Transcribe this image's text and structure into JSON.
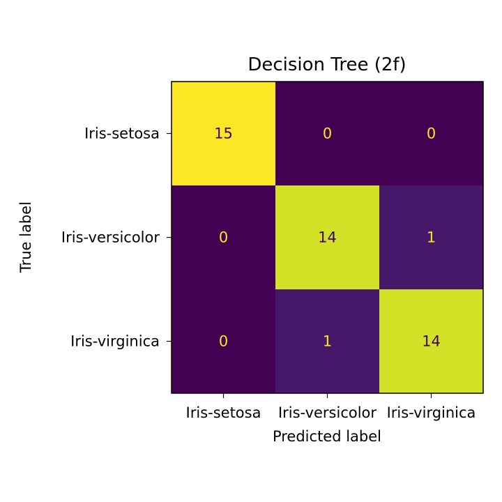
{
  "chart_data": {
    "type": "heatmap",
    "title": "Decision Tree (2f)",
    "xlabel": "Predicted label",
    "ylabel": "True label",
    "x_categories": [
      "Iris-setosa",
      "Iris-versicolor",
      "Iris-virginica"
    ],
    "y_categories": [
      "Iris-setosa",
      "Iris-versicolor",
      "Iris-virginica"
    ],
    "matrix": [
      [
        15,
        0,
        0
      ],
      [
        0,
        14,
        1
      ],
      [
        0,
        1,
        14
      ]
    ],
    "colormap": "viridis",
    "value_range": [
      0,
      15
    ]
  }
}
